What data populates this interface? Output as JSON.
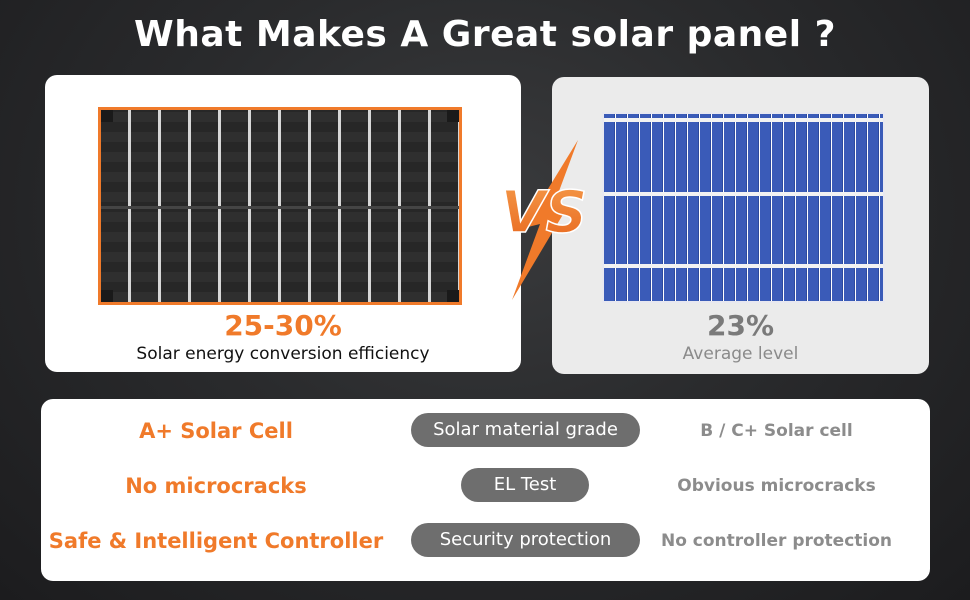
{
  "title": "What Makes A Great solar panel ?",
  "left_card": {
    "value": "25-30%",
    "caption": "Solar energy conversion efficiency"
  },
  "right_card": {
    "value": "23%",
    "caption": "Average level"
  },
  "vs_label": "VS",
  "comparison": [
    {
      "great": "A+ Solar Cell",
      "criterion": "Solar material grade",
      "average": "B / C+ Solar cell"
    },
    {
      "great": "No microcracks",
      "criterion": "EL Test",
      "average": "Obvious microcracks"
    },
    {
      "great": "Safe & Intelligent Controller",
      "criterion": "Security protection",
      "average": "No controller protection"
    }
  ],
  "colors": {
    "accent": "#f07a2a",
    "muted": "#8c8c8c",
    "pill": "#6e6e6e",
    "poly_panel": "#2f4fa8"
  }
}
